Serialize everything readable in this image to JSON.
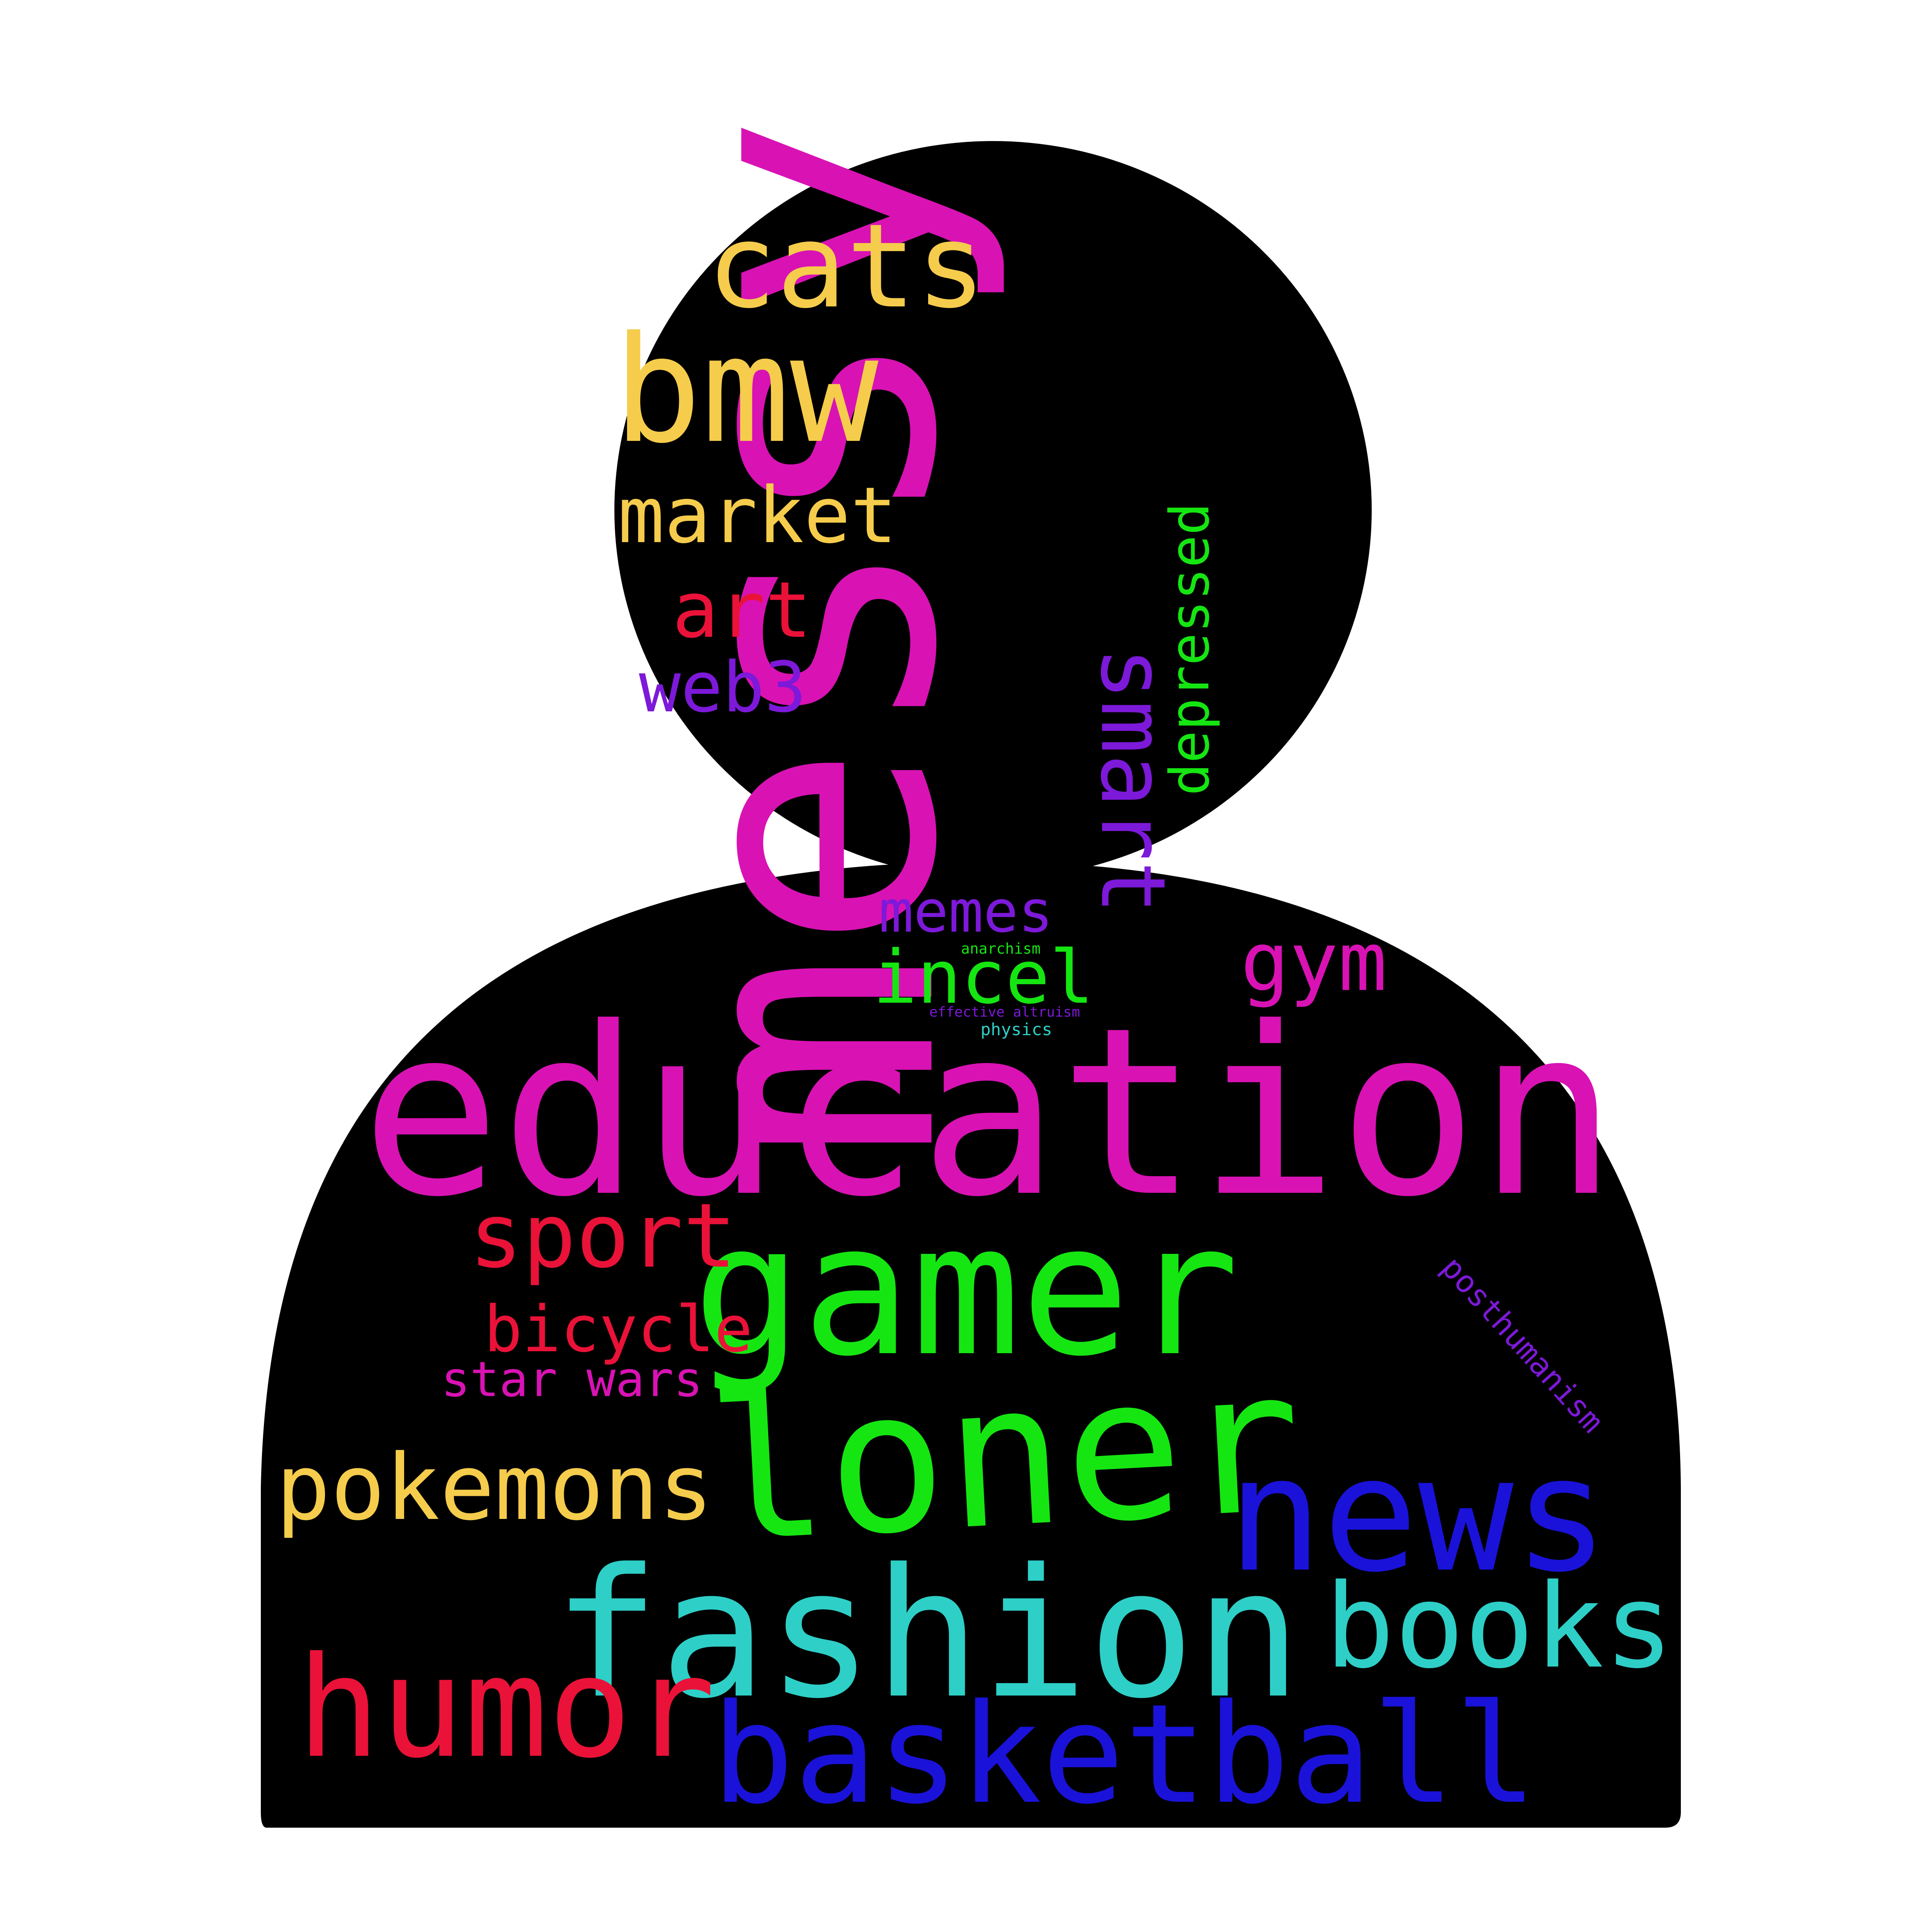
{
  "colors": {
    "background": "#ffffff",
    "silhouette": "#000000",
    "palette": [
      "#d912b4",
      "#15e612",
      "#1a12d9",
      "#2ecfc7",
      "#ea1238",
      "#f5cc4c",
      "#7d19d9"
    ]
  },
  "words": [
    {
      "text": "education",
      "color": "#d912b4"
    },
    {
      "text": "gamer",
      "color": "#15e612"
    },
    {
      "text": "messy",
      "color": "#d912b4"
    },
    {
      "text": "loner",
      "color": "#15e612"
    },
    {
      "text": "fashion",
      "color": "#2ecfc7"
    },
    {
      "text": "news",
      "color": "#1a12d9"
    },
    {
      "text": "basketball",
      "color": "#1a12d9"
    },
    {
      "text": "humor",
      "color": "#ea1238"
    },
    {
      "text": "books",
      "color": "#2ecfc7"
    },
    {
      "text": "bmw",
      "color": "#f5cc4c"
    },
    {
      "text": "cats",
      "color": "#f5cc4c"
    },
    {
      "text": "pokemons",
      "color": "#f5cc4c"
    },
    {
      "text": "smart",
      "color": "#7d19d9"
    },
    {
      "text": "sport",
      "color": "#ea1238"
    },
    {
      "text": "market",
      "color": "#f5cc4c"
    },
    {
      "text": "art",
      "color": "#ea1238"
    },
    {
      "text": "gym",
      "color": "#d912b4"
    },
    {
      "text": "web3",
      "color": "#7d19d9"
    },
    {
      "text": "depressed",
      "color": "#15e612"
    },
    {
      "text": "incel",
      "color": "#15e612"
    },
    {
      "text": "bicycle",
      "color": "#ea1238"
    },
    {
      "text": "memes",
      "color": "#7d19d9"
    },
    {
      "text": "star wars",
      "color": "#d912b4"
    },
    {
      "text": "posthumanism",
      "color": "#7d19d9"
    },
    {
      "text": "anarchism",
      "color": "#15e612"
    },
    {
      "text": "effective altruism",
      "color": "#7d19d9"
    },
    {
      "text": "physics",
      "color": "#2ecfc7"
    }
  ]
}
